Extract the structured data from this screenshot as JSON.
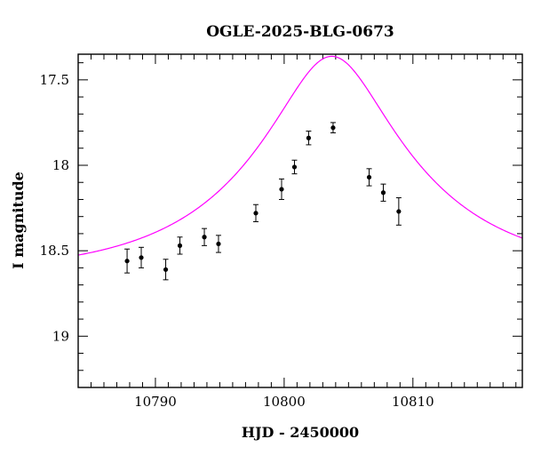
{
  "chart_data": {
    "type": "scatter",
    "title": "OGLE-2025-BLG-0673",
    "xlabel": "HJD - 2450000",
    "ylabel": "I magnitude",
    "xlim": [
      10784,
      10818.5
    ],
    "ylim": [
      19.3,
      17.35
    ],
    "y_inverted": true,
    "x_ticks": [
      10790,
      10800,
      10810
    ],
    "x_tick_labels": [
      "10790",
      "10800",
      "10810"
    ],
    "y_ticks": [
      17.5,
      18,
      18.5,
      19
    ],
    "y_tick_labels": [
      "17.5",
      "18",
      "18.5",
      "19"
    ],
    "grid": false,
    "colors": {
      "data": "#000000",
      "model": "#ff00ff"
    },
    "series": [
      {
        "kind": "points_with_errorbars",
        "x": [
          10787.8,
          10788.9,
          10790.8,
          10791.9,
          10793.8,
          10794.9,
          10797.8,
          10799.8,
          10800.8,
          10801.9,
          10803.8,
          10806.6,
          10807.7,
          10808.9
        ],
        "y": [
          18.56,
          18.54,
          18.61,
          18.47,
          18.42,
          18.46,
          18.28,
          18.14,
          18.01,
          17.84,
          17.78,
          18.07,
          18.16,
          18.27
        ],
        "err": [
          0.07,
          0.06,
          0.06,
          0.05,
          0.05,
          0.05,
          0.05,
          0.06,
          0.04,
          0.04,
          0.03,
          0.05,
          0.05,
          0.08
        ]
      },
      {
        "kind": "model_curve",
        "t0": 10803.7,
        "u0": 0.32,
        "tE": 12.5,
        "baseline_mag": 18.64
      }
    ]
  }
}
